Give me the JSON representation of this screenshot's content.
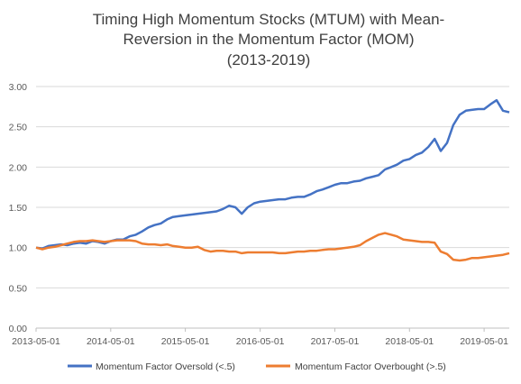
{
  "chart_data": {
    "type": "line",
    "title": [
      "Timing High Momentum Stocks (MTUM) with Mean-",
      "Reversion in the Momentum Factor (MOM)",
      "(2013-2019)"
    ],
    "xlabel": "",
    "ylabel": "",
    "x_ticks": [
      "2013-05-01",
      "2014-05-01",
      "2015-05-01",
      "2016-05-01",
      "2017-05-01",
      "2018-05-01",
      "2019-05-01"
    ],
    "y_ticks": [
      "0.00",
      "0.50",
      "1.00",
      "1.50",
      "2.00",
      "2.50",
      "3.00"
    ],
    "xlim": [
      "2013-05-01",
      "2019-09-01"
    ],
    "ylim": [
      0,
      3.0
    ],
    "grid": "horizontal",
    "legend_position": "bottom",
    "series": [
      {
        "name": "Momentum Factor Oversold (<.5)",
        "color": "#4472C4",
        "points": [
          [
            "2013-05-01",
            1.0
          ],
          [
            "2013-06-01",
            0.99
          ],
          [
            "2013-07-01",
            1.02
          ],
          [
            "2013-08-01",
            1.03
          ],
          [
            "2013-09-01",
            1.04
          ],
          [
            "2013-10-01",
            1.03
          ],
          [
            "2013-11-01",
            1.05
          ],
          [
            "2013-12-01",
            1.06
          ],
          [
            "2014-01-01",
            1.05
          ],
          [
            "2014-02-01",
            1.08
          ],
          [
            "2014-03-01",
            1.07
          ],
          [
            "2014-04-01",
            1.05
          ],
          [
            "2014-05-01",
            1.08
          ],
          [
            "2014-06-01",
            1.1
          ],
          [
            "2014-07-01",
            1.1
          ],
          [
            "2014-08-01",
            1.14
          ],
          [
            "2014-09-01",
            1.16
          ],
          [
            "2014-10-01",
            1.2
          ],
          [
            "2014-11-01",
            1.25
          ],
          [
            "2014-12-01",
            1.28
          ],
          [
            "2015-01-01",
            1.3
          ],
          [
            "2015-02-01",
            1.35
          ],
          [
            "2015-03-01",
            1.38
          ],
          [
            "2015-04-01",
            1.39
          ],
          [
            "2015-05-01",
            1.4
          ],
          [
            "2015-06-01",
            1.41
          ],
          [
            "2015-07-01",
            1.42
          ],
          [
            "2015-08-01",
            1.43
          ],
          [
            "2015-09-01",
            1.44
          ],
          [
            "2015-10-01",
            1.45
          ],
          [
            "2015-11-01",
            1.48
          ],
          [
            "2015-12-01",
            1.52
          ],
          [
            "2016-01-01",
            1.5
          ],
          [
            "2016-02-01",
            1.42
          ],
          [
            "2016-03-01",
            1.5
          ],
          [
            "2016-04-01",
            1.55
          ],
          [
            "2016-05-01",
            1.57
          ],
          [
            "2016-06-01",
            1.58
          ],
          [
            "2016-07-01",
            1.59
          ],
          [
            "2016-08-01",
            1.6
          ],
          [
            "2016-09-01",
            1.6
          ],
          [
            "2016-10-01",
            1.62
          ],
          [
            "2016-11-01",
            1.63
          ],
          [
            "2016-12-01",
            1.63
          ],
          [
            "2017-01-01",
            1.66
          ],
          [
            "2017-02-01",
            1.7
          ],
          [
            "2017-03-01",
            1.72
          ],
          [
            "2017-04-01",
            1.75
          ],
          [
            "2017-05-01",
            1.78
          ],
          [
            "2017-06-01",
            1.8
          ],
          [
            "2017-07-01",
            1.8
          ],
          [
            "2017-08-01",
            1.82
          ],
          [
            "2017-09-01",
            1.83
          ],
          [
            "2017-10-01",
            1.86
          ],
          [
            "2017-11-01",
            1.88
          ],
          [
            "2017-12-01",
            1.9
          ],
          [
            "2018-01-01",
            1.97
          ],
          [
            "2018-02-01",
            2.0
          ],
          [
            "2018-03-01",
            2.03
          ],
          [
            "2018-04-01",
            2.08
          ],
          [
            "2018-05-01",
            2.1
          ],
          [
            "2018-06-01",
            2.15
          ],
          [
            "2018-07-01",
            2.18
          ],
          [
            "2018-08-01",
            2.25
          ],
          [
            "2018-09-01",
            2.35
          ],
          [
            "2018-10-01",
            2.2
          ],
          [
            "2018-11-01",
            2.3
          ],
          [
            "2018-12-01",
            2.52
          ],
          [
            "2019-01-01",
            2.65
          ],
          [
            "2019-02-01",
            2.7
          ],
          [
            "2019-03-01",
            2.71
          ],
          [
            "2019-04-01",
            2.72
          ],
          [
            "2019-05-01",
            2.72
          ],
          [
            "2019-06-01",
            2.78
          ],
          [
            "2019-07-01",
            2.83
          ],
          [
            "2019-08-01",
            2.7
          ],
          [
            "2019-09-01",
            2.68
          ]
        ]
      },
      {
        "name": "Momentum Factor Overbought (>.5)",
        "color": "#ED7D31",
        "points": [
          [
            "2013-05-01",
            1.0
          ],
          [
            "2013-06-01",
            0.98
          ],
          [
            "2013-07-01",
            1.0
          ],
          [
            "2013-08-01",
            1.01
          ],
          [
            "2013-09-01",
            1.03
          ],
          [
            "2013-10-01",
            1.05
          ],
          [
            "2013-11-01",
            1.07
          ],
          [
            "2013-12-01",
            1.08
          ],
          [
            "2014-01-01",
            1.08
          ],
          [
            "2014-02-01",
            1.09
          ],
          [
            "2014-03-01",
            1.08
          ],
          [
            "2014-04-01",
            1.07
          ],
          [
            "2014-05-01",
            1.08
          ],
          [
            "2014-06-01",
            1.09
          ],
          [
            "2014-07-01",
            1.09
          ],
          [
            "2014-08-01",
            1.09
          ],
          [
            "2014-09-01",
            1.08
          ],
          [
            "2014-10-01",
            1.05
          ],
          [
            "2014-11-01",
            1.04
          ],
          [
            "2014-12-01",
            1.04
          ],
          [
            "2015-01-01",
            1.03
          ],
          [
            "2015-02-01",
            1.04
          ],
          [
            "2015-03-01",
            1.02
          ],
          [
            "2015-04-01",
            1.01
          ],
          [
            "2015-05-01",
            1.0
          ],
          [
            "2015-06-01",
            1.0
          ],
          [
            "2015-07-01",
            1.01
          ],
          [
            "2015-08-01",
            0.97
          ],
          [
            "2015-09-01",
            0.95
          ],
          [
            "2015-10-01",
            0.96
          ],
          [
            "2015-11-01",
            0.96
          ],
          [
            "2015-12-01",
            0.95
          ],
          [
            "2016-01-01",
            0.95
          ],
          [
            "2016-02-01",
            0.93
          ],
          [
            "2016-03-01",
            0.94
          ],
          [
            "2016-04-01",
            0.94
          ],
          [
            "2016-05-01",
            0.94
          ],
          [
            "2016-06-01",
            0.94
          ],
          [
            "2016-07-01",
            0.94
          ],
          [
            "2016-08-01",
            0.93
          ],
          [
            "2016-09-01",
            0.93
          ],
          [
            "2016-10-01",
            0.94
          ],
          [
            "2016-11-01",
            0.95
          ],
          [
            "2016-12-01",
            0.95
          ],
          [
            "2017-01-01",
            0.96
          ],
          [
            "2017-02-01",
            0.96
          ],
          [
            "2017-03-01",
            0.97
          ],
          [
            "2017-04-01",
            0.98
          ],
          [
            "2017-05-01",
            0.98
          ],
          [
            "2017-06-01",
            0.99
          ],
          [
            "2017-07-01",
            1.0
          ],
          [
            "2017-08-01",
            1.01
          ],
          [
            "2017-09-01",
            1.03
          ],
          [
            "2017-10-01",
            1.08
          ],
          [
            "2017-11-01",
            1.12
          ],
          [
            "2017-12-01",
            1.16
          ],
          [
            "2018-01-01",
            1.18
          ],
          [
            "2018-02-01",
            1.16
          ],
          [
            "2018-03-01",
            1.14
          ],
          [
            "2018-04-01",
            1.1
          ],
          [
            "2018-05-01",
            1.09
          ],
          [
            "2018-06-01",
            1.08
          ],
          [
            "2018-07-01",
            1.07
          ],
          [
            "2018-08-01",
            1.07
          ],
          [
            "2018-09-01",
            1.06
          ],
          [
            "2018-10-01",
            0.95
          ],
          [
            "2018-11-01",
            0.92
          ],
          [
            "2018-12-01",
            0.85
          ],
          [
            "2019-01-01",
            0.84
          ],
          [
            "2019-02-01",
            0.85
          ],
          [
            "2019-03-01",
            0.87
          ],
          [
            "2019-04-01",
            0.87
          ],
          [
            "2019-05-01",
            0.88
          ],
          [
            "2019-06-01",
            0.89
          ],
          [
            "2019-07-01",
            0.9
          ],
          [
            "2019-08-01",
            0.91
          ],
          [
            "2019-09-01",
            0.93
          ]
        ]
      }
    ]
  }
}
